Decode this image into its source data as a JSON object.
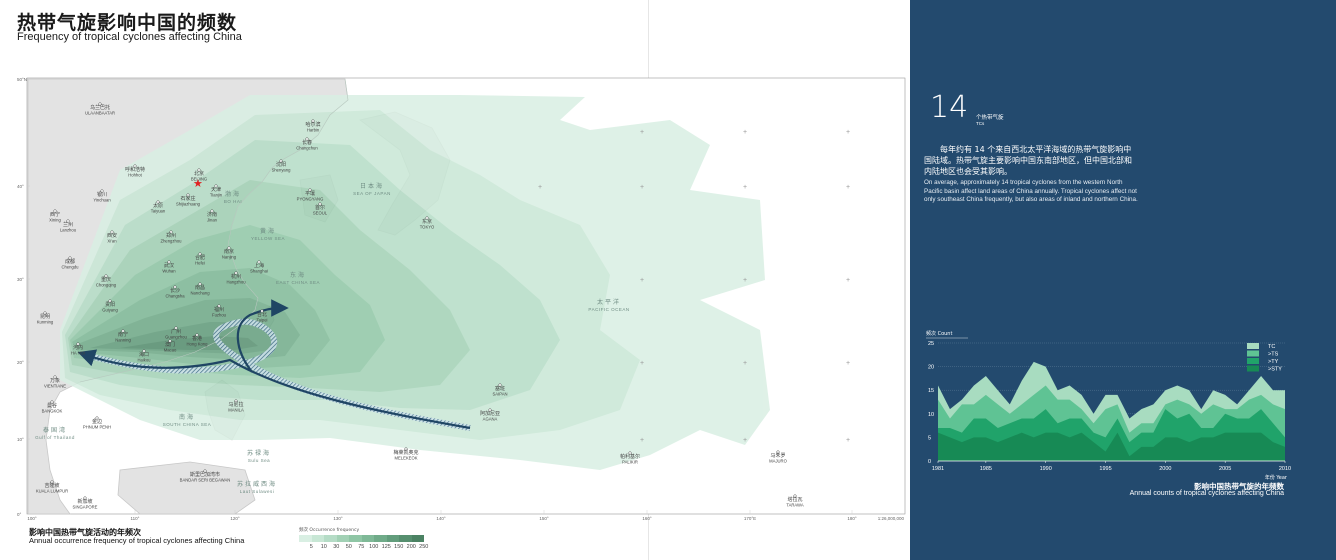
{
  "header": {
    "title_zh": "热带气旋影响中国的频数",
    "title_en": "Frequency of tropical cyclones affecting China"
  },
  "map": {
    "caption_zh": "影响中国热带气旋活动的年频次",
    "caption_en": "Annual occurrence frequency of tropical cyclones affecting China",
    "scale": "1:26,000,000",
    "lat_labels": [
      "50°N",
      "40°",
      "30°",
      "20°",
      "10°",
      "0°"
    ],
    "lon_labels": [
      "100°",
      "110°",
      "120°",
      "130°",
      "140°",
      "150°",
      "160°",
      "170°E",
      "180°"
    ],
    "places": [
      {
        "zh": "乌兰巴托",
        "en": "ULAANBAATAR"
      },
      {
        "zh": "北京",
        "en": "BEIJING"
      },
      {
        "zh": "呼和浩特",
        "en": "Hohhot"
      },
      {
        "zh": "银川",
        "en": "Yinchuan"
      },
      {
        "zh": "西宁",
        "en": "Xining"
      },
      {
        "zh": "兰州",
        "en": "Lanzhou"
      },
      {
        "zh": "西安",
        "en": "Xi'an"
      },
      {
        "zh": "太原",
        "en": "Taiyuan"
      },
      {
        "zh": "石家庄",
        "en": "Shijiazhuang"
      },
      {
        "zh": "天津",
        "en": "Tianjin"
      },
      {
        "zh": "济南",
        "en": "Jinan"
      },
      {
        "zh": "郑州",
        "en": "Zhengzhou"
      },
      {
        "zh": "成都",
        "en": "Chengdu"
      },
      {
        "zh": "重庆",
        "en": "Chongqing"
      },
      {
        "zh": "武汉",
        "en": "Wuhan"
      },
      {
        "zh": "合肥",
        "en": "Hefei"
      },
      {
        "zh": "南京",
        "en": "Nanjing"
      },
      {
        "zh": "上海",
        "en": "Shanghai"
      },
      {
        "zh": "杭州",
        "en": "Hangzhou"
      },
      {
        "zh": "南昌",
        "en": "Nanchang"
      },
      {
        "zh": "长沙",
        "en": "Changsha"
      },
      {
        "zh": "贵阳",
        "en": "Guiyang"
      },
      {
        "zh": "昆明",
        "en": "Kunming"
      },
      {
        "zh": "福州",
        "en": "Fuzhou"
      },
      {
        "zh": "台北",
        "en": "Taipei"
      },
      {
        "zh": "广州",
        "en": "Guangzhou"
      },
      {
        "zh": "南宁",
        "en": "Nanning"
      },
      {
        "zh": "香港",
        "en": "Hong Kong"
      },
      {
        "zh": "澳门",
        "en": "Macao"
      },
      {
        "zh": "海口",
        "en": "Haikou"
      },
      {
        "zh": "河内",
        "en": "HA NOI"
      },
      {
        "zh": "万象",
        "en": "VIENTIANE"
      },
      {
        "zh": "曼谷",
        "en": "BANGKOK"
      },
      {
        "zh": "金边",
        "en": "PHNUM PENH"
      },
      {
        "zh": "马尼拉",
        "en": "MANILA"
      },
      {
        "zh": "沈阳",
        "en": "Shenyang"
      },
      {
        "zh": "长春",
        "en": "Changchun"
      },
      {
        "zh": "哈尔滨",
        "en": "Harbin"
      },
      {
        "zh": "平壤",
        "en": "PYONGYANG"
      },
      {
        "zh": "首尔",
        "en": "SEOUL"
      },
      {
        "zh": "东京",
        "en": "TOKYO"
      },
      {
        "zh": "塞班",
        "en": "SAIPAN"
      },
      {
        "zh": "阿加尼亚",
        "en": "AGANA"
      },
      {
        "zh": "梅莱凯奥克",
        "en": "MELEKEOK"
      },
      {
        "zh": "帕利基尔",
        "en": "PALIKIR"
      },
      {
        "zh": "马朱罗",
        "en": "MAJURO"
      },
      {
        "zh": "塔拉瓦",
        "en": "TARAWA"
      },
      {
        "zh": "吉隆坡",
        "en": "KUALA LUMPUR"
      },
      {
        "zh": "新加坡",
        "en": "SINGAPORE"
      },
      {
        "zh": "斯里巴加湾市",
        "en": "BANDAR SERI BEGAWAN"
      }
    ],
    "seas": [
      {
        "zh": "渤海",
        "en": "BO HAI"
      },
      {
        "zh": "黄海",
        "en": "YELLOW SEA"
      },
      {
        "zh": "东海",
        "en": "EAST CHINA SEA"
      },
      {
        "zh": "南海",
        "en": "SOUTH CHINA SEA"
      },
      {
        "zh": "日本海",
        "en": "SEA OF JAPAN"
      },
      {
        "zh": "太平洋",
        "en": "PACIFIC OCEAN"
      },
      {
        "zh": "苏禄海",
        "en": "Sulu Sea"
      },
      {
        "zh": "苏拉威西海",
        "en": "Laut Sulawesi"
      },
      {
        "zh": "泰国湾",
        "en": "Gulf of Thailand"
      }
    ],
    "legend": {
      "title": "频次 Occurrence frequency",
      "labels": [
        "5",
        "10",
        "30",
        "50",
        "75",
        "100",
        "125",
        "150",
        "200",
        "250"
      ],
      "colors": [
        "#d9efe3",
        "#c8e7d5",
        "#b5dcc6",
        "#a2d1b5",
        "#8fc6a5",
        "#7fb997",
        "#70ab89",
        "#629d7c",
        "#568f6f",
        "#4b8263"
      ]
    }
  },
  "panel": {
    "stat_value": "14",
    "stat_unit_zh": "个热带气旋",
    "stat_unit_en": "TCs",
    "text_zh": "每年约有 14 个来自西北太平洋海域的热带气旋影响中国陆域。热带气旋主要影响中国东南部地区，但中国北部和内陆地区也会受其影响。",
    "text_en": "On average, approximately 14 tropical cyclones from the western North Pacific basin affect land areas of China annually. Tropical cyclones affect not only southeast China frequently, but also areas of inland and northern China.",
    "chart_caption_zh": "影响中国热带气旋的年频数",
    "chart_caption_en": "Annual counts of tropical cyclones affecting China"
  },
  "chart_data": {
    "type": "area",
    "ylabel": "频次 Count",
    "xlabel": "年份 Year",
    "ylim": [
      0,
      25
    ],
    "yticks": [
      0,
      5,
      10,
      15,
      20,
      25
    ],
    "xticks": [
      1981,
      1985,
      1990,
      1995,
      2000,
      2005,
      2010
    ],
    "x": [
      1981,
      1982,
      1983,
      1984,
      1985,
      1986,
      1987,
      1988,
      1989,
      1990,
      1991,
      1992,
      1993,
      1994,
      1995,
      1996,
      1997,
      1998,
      1999,
      2000,
      2001,
      2002,
      2003,
      2004,
      2005,
      2006,
      2007,
      2008,
      2009,
      2010
    ],
    "series": [
      {
        "name": "TC",
        "color": "#a8dcc0",
        "values": [
          16,
          11,
          13,
          16,
          18,
          15,
          12,
          17,
          21,
          20,
          15,
          16,
          14,
          10,
          14,
          14,
          9,
          11,
          12,
          15,
          16,
          15,
          11,
          15,
          14,
          12,
          15,
          18,
          15,
          15
        ]
      },
      {
        "name": ">TS",
        "color": "#5fc394",
        "values": [
          13,
          9,
          12,
          12,
          14,
          12,
          10,
          12,
          14,
          16,
          13,
          13,
          11,
          8,
          11,
          12,
          6,
          8,
          8,
          12,
          13,
          12,
          10,
          12,
          11,
          11,
          13,
          14,
          12,
          11
        ]
      },
      {
        "name": ">TY",
        "color": "#20a36a",
        "values": [
          7,
          7,
          6,
          9,
          9,
          7,
          8,
          9,
          9,
          11,
          8,
          9,
          9,
          6,
          5,
          9,
          4,
          6,
          6,
          11,
          9,
          10,
          7,
          7,
          10,
          9,
          9,
          11,
          8,
          5
        ]
      },
      {
        "name": ">STY",
        "color": "#178a55",
        "values": [
          6,
          5,
          4,
          5,
          5,
          4,
          5,
          6,
          5,
          6,
          6,
          5,
          6,
          4,
          2,
          6,
          1,
          3,
          3,
          5,
          5,
          4,
          5,
          5,
          6,
          6,
          6,
          6,
          4,
          3
        ]
      }
    ]
  }
}
